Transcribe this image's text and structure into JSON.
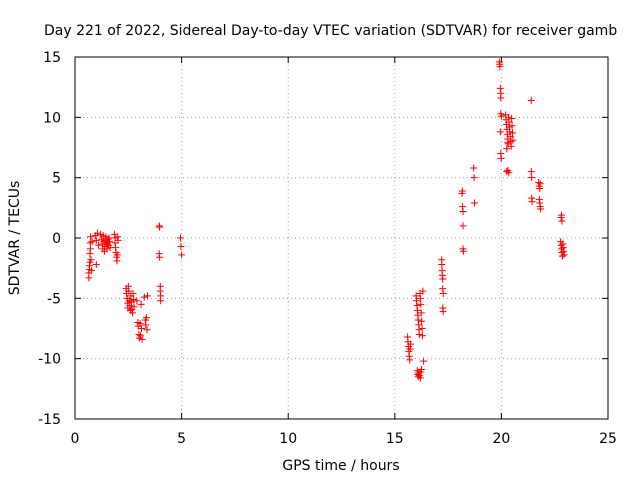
{
  "chart_data": {
    "type": "scatter",
    "title": "Day 221 of 2022, Sidereal Day-to-day VTEC variation (SDTVAR) for receiver gamb",
    "xlabel": "GPS time / hours",
    "ylabel": "SDTVAR / TECUs",
    "xlim": [
      0,
      25
    ],
    "ylim": [
      -15,
      15
    ],
    "xticks": [
      0,
      5,
      10,
      15,
      20,
      25
    ],
    "yticks": [
      -15,
      -10,
      -5,
      0,
      5,
      10,
      15
    ],
    "grid": true,
    "marker": "+",
    "color": "#ff0000",
    "series": [
      {
        "name": "SDTVAR",
        "points": [
          [
            0.65,
            -3.3
          ],
          [
            0.65,
            -2.9
          ],
          [
            0.67,
            -2.6
          ],
          [
            0.68,
            -2.3
          ],
          [
            0.7,
            -2.0
          ],
          [
            0.7,
            -1.3
          ],
          [
            0.72,
            -0.9
          ],
          [
            0.72,
            -0.4
          ],
          [
            0.73,
            0.1
          ],
          [
            0.75,
            -1.8
          ],
          [
            0.78,
            -2.7
          ],
          [
            0.8,
            -0.3
          ],
          [
            0.95,
            0.2
          ],
          [
            1.0,
            -0.2
          ],
          [
            1.0,
            -2.2
          ],
          [
            1.05,
            0.4
          ],
          [
            1.1,
            -0.6
          ],
          [
            1.2,
            0.3
          ],
          [
            1.25,
            -0.1
          ],
          [
            1.28,
            -0.5
          ],
          [
            1.3,
            -0.9
          ],
          [
            1.32,
            0.2
          ],
          [
            1.35,
            -0.3
          ],
          [
            1.38,
            -1.1
          ],
          [
            1.4,
            -0.7
          ],
          [
            1.42,
            -0.2
          ],
          [
            1.45,
            0.1
          ],
          [
            1.48,
            -0.5
          ],
          [
            1.5,
            -0.9
          ],
          [
            1.52,
            -0.4
          ],
          [
            1.55,
            -0.1
          ],
          [
            1.58,
            -0.6
          ],
          [
            1.6,
            0.0
          ],
          [
            1.62,
            -0.3
          ],
          [
            1.65,
            -0.8
          ],
          [
            1.85,
            0.3
          ],
          [
            1.87,
            0.0
          ],
          [
            1.88,
            -0.4
          ],
          [
            1.9,
            -0.8
          ],
          [
            1.92,
            -1.2
          ],
          [
            1.95,
            -1.6
          ],
          [
            1.97,
            -1.9
          ],
          [
            2.0,
            0.1
          ],
          [
            2.0,
            -1.4
          ],
          [
            2.02,
            -0.2
          ],
          [
            2.4,
            -4.2
          ],
          [
            2.42,
            -4.6
          ],
          [
            2.45,
            -5.0
          ],
          [
            2.47,
            -5.4
          ],
          [
            2.48,
            -5.8
          ],
          [
            2.5,
            -4.0
          ],
          [
            2.52,
            -4.4
          ],
          [
            2.55,
            -5.2
          ],
          [
            2.57,
            -5.6
          ],
          [
            2.6,
            -6.0
          ],
          [
            2.62,
            -4.8
          ],
          [
            2.65,
            -5.3
          ],
          [
            2.67,
            -5.9
          ],
          [
            2.7,
            -6.2
          ],
          [
            2.72,
            -4.6
          ],
          [
            2.75,
            -5.1
          ],
          [
            2.77,
            -5.7
          ],
          [
            2.9,
            -5.2
          ],
          [
            2.95,
            -7.0
          ],
          [
            2.97,
            -7.3
          ],
          [
            3.0,
            -8.0
          ],
          [
            3.02,
            -8.3
          ],
          [
            3.05,
            -7.1
          ],
          [
            3.07,
            -8.1
          ],
          [
            3.1,
            -5.5
          ],
          [
            3.12,
            -7.5
          ],
          [
            3.15,
            -8.4
          ],
          [
            3.25,
            -4.9
          ],
          [
            3.3,
            -6.8
          ],
          [
            3.32,
            -7.2
          ],
          [
            3.35,
            -6.6
          ],
          [
            3.38,
            -7.6
          ],
          [
            3.4,
            -4.8
          ],
          [
            3.95,
            1.0
          ],
          [
            3.97,
            0.9
          ],
          [
            3.95,
            -1.3
          ],
          [
            3.97,
            -1.6
          ],
          [
            4.0,
            -4.0
          ],
          [
            4.0,
            -4.4
          ],
          [
            4.02,
            -4.8
          ],
          [
            4.02,
            -5.2
          ],
          [
            4.95,
            0.0
          ],
          [
            4.97,
            -0.7
          ],
          [
            5.0,
            -1.4
          ],
          [
            15.6,
            -8.2
          ],
          [
            15.62,
            -8.6
          ],
          [
            15.64,
            -9.0
          ],
          [
            15.66,
            -9.4
          ],
          [
            15.68,
            -9.8
          ],
          [
            15.7,
            -10.1
          ],
          [
            15.72,
            -9.2
          ],
          [
            15.74,
            -8.8
          ],
          [
            16.0,
            -4.8
          ],
          [
            16.02,
            -5.2
          ],
          [
            16.04,
            -5.6
          ],
          [
            16.06,
            -6.0
          ],
          [
            16.08,
            -6.4
          ],
          [
            16.1,
            -6.8
          ],
          [
            16.12,
            -7.2
          ],
          [
            16.14,
            -7.6
          ],
          [
            16.15,
            -8.0
          ],
          [
            16.05,
            -11.0
          ],
          [
            16.08,
            -11.3
          ],
          [
            16.1,
            -11.5
          ],
          [
            16.12,
            -11.2
          ],
          [
            16.15,
            -11.4
          ],
          [
            16.2,
            -11.6
          ],
          [
            16.22,
            -11.1
          ],
          [
            16.25,
            -10.9
          ],
          [
            16.18,
            -4.6
          ],
          [
            16.2,
            -5.0
          ],
          [
            16.22,
            -5.5
          ],
          [
            16.24,
            -6.2
          ],
          [
            16.26,
            -6.9
          ],
          [
            16.28,
            -7.5
          ],
          [
            16.3,
            -8.1
          ],
          [
            16.32,
            -4.4
          ],
          [
            16.35,
            -10.2
          ],
          [
            17.2,
            -1.8
          ],
          [
            17.2,
            -2.2
          ],
          [
            17.22,
            -2.7
          ],
          [
            17.23,
            -3.1
          ],
          [
            17.25,
            -3.4
          ],
          [
            17.25,
            -4.2
          ],
          [
            17.27,
            -4.6
          ],
          [
            17.25,
            -5.8
          ],
          [
            17.27,
            -6.1
          ],
          [
            18.15,
            3.7
          ],
          [
            18.17,
            3.9
          ],
          [
            18.18,
            2.6
          ],
          [
            18.2,
            2.2
          ],
          [
            18.2,
            1.0
          ],
          [
            18.2,
            -0.9
          ],
          [
            18.22,
            -1.1
          ],
          [
            18.7,
            5.8
          ],
          [
            18.72,
            5.0
          ],
          [
            18.74,
            2.9
          ],
          [
            19.9,
            14.6
          ],
          [
            19.92,
            14.4
          ],
          [
            19.93,
            14.2
          ],
          [
            19.95,
            12.4
          ],
          [
            19.97,
            12.0
          ],
          [
            19.97,
            11.6
          ],
          [
            19.97,
            10.3
          ],
          [
            20.0,
            10.1
          ],
          [
            19.95,
            8.8
          ],
          [
            19.97,
            7.0
          ],
          [
            19.99,
            6.6
          ],
          [
            20.2,
            10.2
          ],
          [
            20.22,
            9.8
          ],
          [
            20.24,
            9.4
          ],
          [
            20.26,
            9.0
          ],
          [
            20.28,
            8.6
          ],
          [
            20.3,
            8.2
          ],
          [
            20.32,
            7.8
          ],
          [
            20.34,
            10.0
          ],
          [
            20.36,
            9.6
          ],
          [
            20.38,
            9.2
          ],
          [
            20.4,
            8.8
          ],
          [
            20.42,
            8.4
          ],
          [
            20.44,
            8.0
          ],
          [
            20.46,
            7.6
          ],
          [
            20.48,
            9.9
          ],
          [
            20.5,
            9.3
          ],
          [
            20.52,
            8.7
          ],
          [
            20.54,
            8.1
          ],
          [
            20.25,
            5.5
          ],
          [
            20.3,
            5.6
          ],
          [
            20.35,
            5.4
          ],
          [
            20.25,
            7.4
          ],
          [
            20.3,
            7.9
          ],
          [
            21.4,
            11.4
          ],
          [
            21.4,
            5.5
          ],
          [
            21.42,
            5.0
          ],
          [
            21.42,
            3.3
          ],
          [
            21.44,
            3.0
          ],
          [
            21.75,
            4.6
          ],
          [
            21.77,
            4.3
          ],
          [
            21.8,
            4.1
          ],
          [
            21.82,
            4.5
          ],
          [
            21.78,
            3.2
          ],
          [
            21.8,
            2.9
          ],
          [
            21.82,
            2.6
          ],
          [
            21.84,
            2.4
          ],
          [
            22.8,
            1.7
          ],
          [
            22.82,
            1.9
          ],
          [
            22.84,
            1.4
          ],
          [
            22.78,
            -0.3
          ],
          [
            22.8,
            -0.6
          ],
          [
            22.82,
            -0.9
          ],
          [
            22.84,
            -1.2
          ],
          [
            22.86,
            -1.5
          ],
          [
            22.88,
            -0.5
          ],
          [
            22.9,
            -0.8
          ],
          [
            22.92,
            -1.1
          ],
          [
            22.94,
            -1.4
          ]
        ]
      }
    ]
  }
}
